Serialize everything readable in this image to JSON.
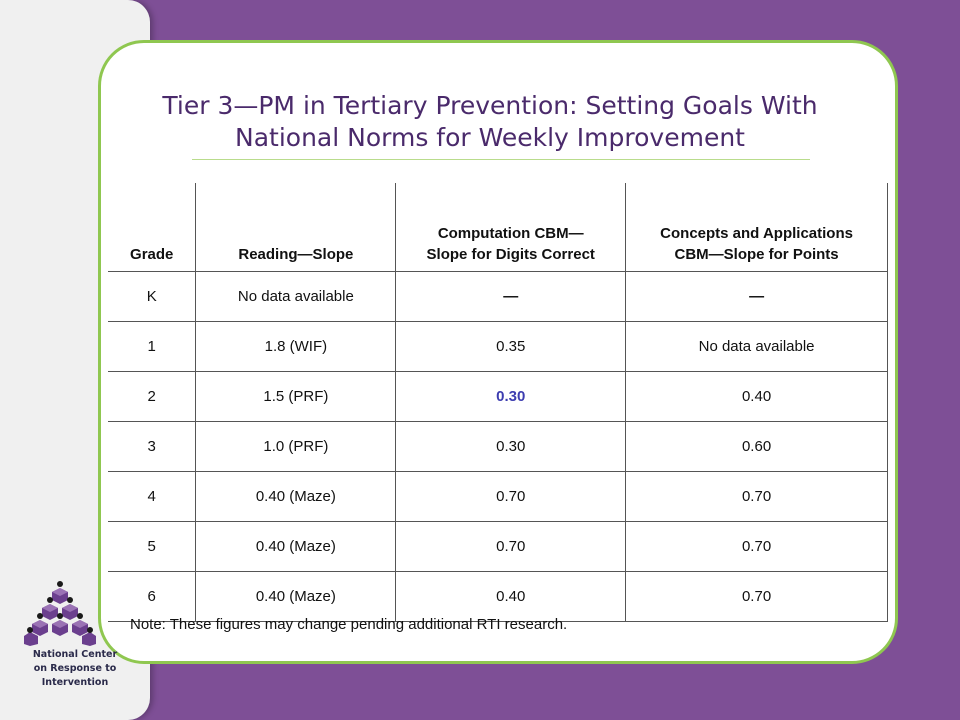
{
  "slide": {
    "title_line1": "Tier 3—PM in Tertiary Prevention: Setting Goals With",
    "title_line2": "National Norms for Weekly Improvement",
    "note": "Note: These figures may change pending additional RTI research."
  },
  "table": {
    "headers": {
      "grade": "Grade",
      "reading": "Reading—Slope",
      "computation_line1": "Computation CBM—",
      "computation_line2": "Slope for Digits Correct",
      "concepts_line1": "Concepts and Applications",
      "concepts_line2": "CBM—Slope for Points"
    },
    "rows": [
      {
        "grade": "K",
        "reading": "No data available",
        "computation": "—",
        "concepts": "—"
      },
      {
        "grade": "1",
        "reading": "1.8 (WIF)",
        "computation": "0.35",
        "concepts": "No data available"
      },
      {
        "grade": "2",
        "reading": "1.5 (PRF)",
        "computation": "0.30",
        "concepts": "0.40"
      },
      {
        "grade": "3",
        "reading": "1.0 (PRF)",
        "computation": "0.30",
        "concepts": "0.60"
      },
      {
        "grade": "4",
        "reading": "0.40 (Maze)",
        "computation": "0.70",
        "concepts": "0.70"
      },
      {
        "grade": "5",
        "reading": "0.40 (Maze)",
        "computation": "0.70",
        "concepts": "0.70"
      },
      {
        "grade": "6",
        "reading": "0.40 (Maze)",
        "computation": "0.40",
        "concepts": "0.70"
      }
    ]
  },
  "logo": {
    "line1": "National Center",
    "line2": "on Response to",
    "line3": "Intervention"
  },
  "colors": {
    "background_purple": "#7e4f96",
    "card_border_green": "#8fc750",
    "title_purple": "#4a2a6b",
    "highlight_blue": "#3d3db0"
  }
}
